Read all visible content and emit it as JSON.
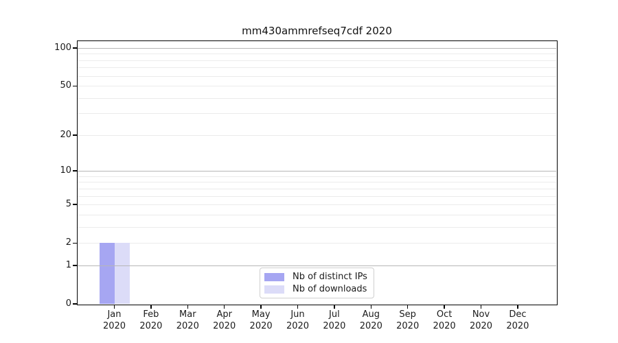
{
  "title": "mm430ammrefseq7cdf 2020",
  "chart_data": {
    "type": "bar",
    "title": "mm430ammrefseq7cdf 2020",
    "categories": [
      "Jan 2020",
      "Feb 2020",
      "Mar 2020",
      "Apr 2020",
      "May 2020",
      "Jun 2020",
      "Jul 2020",
      "Aug 2020",
      "Sep 2020",
      "Oct 2020",
      "Nov 2020",
      "Dec 2020"
    ],
    "series": [
      {
        "name": "Nb of distinct IPs",
        "color": "#a6a6f2",
        "values": [
          2,
          0,
          0,
          0,
          0,
          0,
          0,
          0,
          0,
          0,
          0,
          0
        ]
      },
      {
        "name": "Nb of downloads",
        "color": "#dcdcf8",
        "values": [
          2,
          0,
          0,
          0,
          0,
          0,
          0,
          0,
          0,
          0,
          0,
          0
        ]
      }
    ],
    "y_ticks": [
      0,
      1,
      2,
      5,
      10,
      20,
      50,
      100
    ],
    "y_major_decades": [
      1,
      10,
      100
    ],
    "y_scale": "log1p",
    "ylim": [
      0,
      114
    ],
    "grid": "horizontal",
    "legend_position": "lower-center-inside",
    "colors": {
      "axis": "#000000",
      "grid_major": "#b6b6b6",
      "grid_minor": "#ebebeb",
      "background": "#ffffff"
    }
  }
}
